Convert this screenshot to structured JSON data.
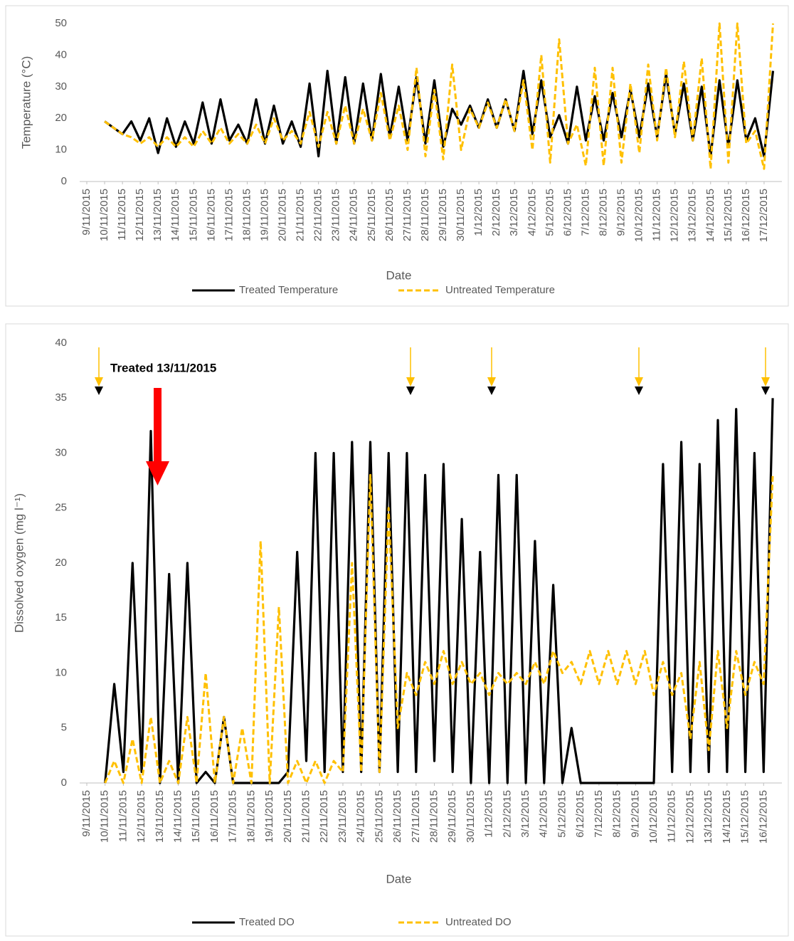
{
  "chart_data": [
    {
      "type": "line",
      "x_label": "Date",
      "y_label": "Temperature (°C)",
      "xlim": [
        0,
        39
      ],
      "ylim": [
        0,
        50
      ],
      "yticks": [
        0,
        10,
        20,
        30,
        40,
        50
      ],
      "grid": false,
      "legend": "bottom",
      "xticks": [
        {
          "value": 0,
          "label": "9/11/2015"
        },
        {
          "value": 1,
          "label": "10/11/2015"
        },
        {
          "value": 2,
          "label": "11/11/2015"
        },
        {
          "value": 3,
          "label": "12/11/2015"
        },
        {
          "value": 4,
          "label": "13/11/2015"
        },
        {
          "value": 5,
          "label": "14/11/2015"
        },
        {
          "value": 6,
          "label": "15/11/2015"
        },
        {
          "value": 7,
          "label": "16/11/2015"
        },
        {
          "value": 8,
          "label": "17/11/2015"
        },
        {
          "value": 9,
          "label": "18/11/2015"
        },
        {
          "value": 10,
          "label": "19/11/2015"
        },
        {
          "value": 11,
          "label": "20/11/2015"
        },
        {
          "value": 12,
          "label": "21/11/2015"
        },
        {
          "value": 13,
          "label": "22/11/2015"
        },
        {
          "value": 14,
          "label": "23/11/2015"
        },
        {
          "value": 15,
          "label": "24/11/2015"
        },
        {
          "value": 16,
          "label": "25/11/2015"
        },
        {
          "value": 17,
          "label": "26/11/2015"
        },
        {
          "value": 18,
          "label": "27/11/2015"
        },
        {
          "value": 19,
          "label": "28/11/2015"
        },
        {
          "value": 20,
          "label": "29/11/2015"
        },
        {
          "value": 21,
          "label": "30/11/2015"
        },
        {
          "value": 22,
          "label": "1/12/2015"
        },
        {
          "value": 23,
          "label": "2/12/2015"
        },
        {
          "value": 24,
          "label": "3/12/2015"
        },
        {
          "value": 25,
          "label": "4/12/2015"
        },
        {
          "value": 26,
          "label": "5/12/2015"
        },
        {
          "value": 27,
          "label": "6/12/2015"
        },
        {
          "value": 28,
          "label": "7/12/2015"
        },
        {
          "value": 29,
          "label": "8/12/2015"
        },
        {
          "value": 30,
          "label": "9/12/2015"
        },
        {
          "value": 31,
          "label": "10/12/2015"
        },
        {
          "value": 32,
          "label": "11/12/2015"
        },
        {
          "value": 33,
          "label": "12/12/2015"
        },
        {
          "value": 34,
          "label": "13/12/2015"
        },
        {
          "value": 35,
          "label": "14/12/2015"
        },
        {
          "value": 36,
          "label": "15/12/2015"
        },
        {
          "value": 37,
          "label": "16/12/2015"
        },
        {
          "value": 38,
          "label": "17/12/2015"
        }
      ],
      "x": [
        1,
        1.5,
        2,
        2.5,
        3,
        3.5,
        4,
        4.5,
        5,
        5.5,
        6,
        6.5,
        7,
        7.5,
        8,
        8.5,
        9,
        9.5,
        10,
        10.5,
        11,
        11.5,
        12,
        12.5,
        13,
        13.5,
        14,
        14.5,
        15,
        15.5,
        16,
        16.5,
        17,
        17.5,
        18,
        18.5,
        19,
        19.5,
        20,
        20.5,
        21,
        21.5,
        22,
        22.5,
        23,
        23.5,
        24,
        24.5,
        25,
        25.5,
        26,
        26.5,
        27,
        27.5,
        28,
        28.5,
        29,
        29.5,
        30,
        30.5,
        31,
        31.5,
        32,
        32.5,
        33,
        33.5,
        34,
        34.5,
        35,
        35.5,
        36,
        36.5,
        37,
        37.5,
        38,
        38.5
      ],
      "series": [
        {
          "name": "Treated Temperature",
          "color": "#000000",
          "dashed": false,
          "values": [
            19,
            17,
            15,
            19,
            13,
            20,
            9,
            20,
            11,
            19,
            12,
            25,
            12,
            26,
            13,
            18,
            12,
            26,
            12,
            24,
            12,
            19,
            11,
            31,
            8,
            35,
            12,
            33,
            12,
            31,
            13,
            34,
            14,
            30,
            13,
            33,
            12,
            32,
            11,
            23,
            18,
            24,
            17,
            26,
            17,
            26,
            16,
            35,
            15,
            32,
            14,
            21,
            12,
            30,
            13,
            27,
            13,
            28,
            14,
            29,
            14,
            31,
            14,
            34,
            15,
            31,
            13,
            30,
            8,
            32,
            11,
            32,
            13,
            20,
            8,
            35
          ]
        },
        {
          "name": "Untreated Temperature",
          "color": "#FFC000",
          "dashed": true,
          "values": [
            19,
            17,
            15,
            14,
            12,
            14,
            11,
            14,
            11,
            14,
            11,
            16,
            12,
            17,
            12,
            15,
            12,
            18,
            12,
            20,
            13,
            16,
            12,
            22,
            11,
            22,
            12,
            24,
            12,
            23,
            13,
            28,
            13,
            24,
            10,
            36,
            8,
            29,
            7,
            37,
            10,
            23,
            17,
            25,
            17,
            26,
            16,
            32,
            10,
            40,
            6,
            45,
            12,
            18,
            5,
            36,
            5,
            36,
            6,
            31,
            9,
            37,
            13,
            36,
            14,
            38,
            13,
            39,
            4,
            50,
            6,
            50,
            12,
            16,
            4,
            50
          ]
        }
      ]
    },
    {
      "type": "line",
      "x_label": "Date",
      "y_label": "Dissolved oxygen (mg l⁻¹)",
      "annotation": "Treated 13/11/2015",
      "xlim": [
        0,
        38
      ],
      "ylim": [
        0,
        40
      ],
      "yticks": [
        0,
        5,
        10,
        15,
        20,
        25,
        30,
        35,
        40
      ],
      "grid": false,
      "legend": "bottom",
      "xticks": [
        {
          "value": 0,
          "label": "9/11/2015"
        },
        {
          "value": 1,
          "label": "10/11/2015"
        },
        {
          "value": 2,
          "label": "11/11/2015"
        },
        {
          "value": 3,
          "label": "12/11/2015"
        },
        {
          "value": 4,
          "label": "13/11/2015"
        },
        {
          "value": 5,
          "label": "14/11/2015"
        },
        {
          "value": 6,
          "label": "15/11/2015"
        },
        {
          "value": 7,
          "label": "16/11/2015"
        },
        {
          "value": 8,
          "label": "17/11/2015"
        },
        {
          "value": 9,
          "label": "18/11/2015"
        },
        {
          "value": 10,
          "label": "19/11/2015"
        },
        {
          "value": 11,
          "label": "20/11/2015"
        },
        {
          "value": 12,
          "label": "21/11/2015"
        },
        {
          "value": 13,
          "label": "22/11/2015"
        },
        {
          "value": 14,
          "label": "23/11/2015"
        },
        {
          "value": 15,
          "label": "24/11/2015"
        },
        {
          "value": 16,
          "label": "25/11/2015"
        },
        {
          "value": 17,
          "label": "26/11/2015"
        },
        {
          "value": 18,
          "label": "27/11/2015"
        },
        {
          "value": 19,
          "label": "28/11/2015"
        },
        {
          "value": 20,
          "label": "29/11/2015"
        },
        {
          "value": 21,
          "label": "30/11/2015"
        },
        {
          "value": 22,
          "label": "1/12/2015"
        },
        {
          "value": 23,
          "label": "2/12/2015"
        },
        {
          "value": 24,
          "label": "3/12/2015"
        },
        {
          "value": 25,
          "label": "4/12/2015"
        },
        {
          "value": 26,
          "label": "5/12/2015"
        },
        {
          "value": 27,
          "label": "6/12/2015"
        },
        {
          "value": 28,
          "label": "7/12/2015"
        },
        {
          "value": 29,
          "label": "8/12/2015"
        },
        {
          "value": 30,
          "label": "9/12/2015"
        },
        {
          "value": 31,
          "label": "10/12/2015"
        },
        {
          "value": 32,
          "label": "11/12/2015"
        },
        {
          "value": 33,
          "label": "12/12/2015"
        },
        {
          "value": 34,
          "label": "13/12/2015"
        },
        {
          "value": 35,
          "label": "14/12/2015"
        },
        {
          "value": 36,
          "label": "15/12/2015"
        },
        {
          "value": 37,
          "label": "16/12/2015"
        }
      ],
      "x": [
        1,
        1.5,
        2,
        2.5,
        3,
        3.5,
        4,
        4.5,
        5,
        5.5,
        6,
        6.5,
        7,
        7.5,
        8,
        8.5,
        9,
        9.5,
        10,
        10.5,
        11,
        11.5,
        12,
        12.5,
        13,
        13.5,
        14,
        14.5,
        15,
        15.5,
        16,
        16.5,
        17,
        17.5,
        18,
        18.5,
        19,
        19.5,
        20,
        20.5,
        21,
        21.5,
        22,
        22.5,
        23,
        23.5,
        24,
        24.5,
        25,
        25.5,
        26,
        26.5,
        27,
        27.5,
        28,
        28.5,
        29,
        29.5,
        30,
        30.5,
        31,
        31.5,
        32,
        32.5,
        33,
        33.5,
        34,
        34.5,
        35,
        35.5,
        36,
        36.5,
        37,
        37.5
      ],
      "series": [
        {
          "name": "Treated DO",
          "color": "#000000",
          "dashed": false,
          "values": [
            0,
            9,
            1,
            20,
            1,
            32,
            0,
            19,
            0,
            20,
            0,
            1,
            0,
            6,
            0,
            0,
            0,
            0,
            0,
            0,
            1,
            21,
            2,
            30,
            1,
            30,
            1,
            31,
            1,
            31,
            1,
            30,
            1,
            30,
            1,
            28,
            2,
            29,
            1,
            24,
            0,
            21,
            0,
            28,
            0,
            28,
            0,
            22,
            0,
            18,
            0,
            5,
            0,
            0,
            0,
            0,
            0,
            0,
            0,
            0,
            0,
            29,
            1,
            31,
            1,
            29,
            1,
            33,
            1,
            34,
            1,
            30,
            1,
            35
          ]
        },
        {
          "name": "Untreated DO",
          "color": "#FFC000",
          "dashed": true,
          "values": [
            0,
            2,
            0,
            4,
            0,
            6,
            0,
            2,
            0,
            6,
            0,
            10,
            0,
            6,
            0,
            5,
            0,
            22,
            0,
            16,
            0,
            2,
            0,
            2,
            0,
            2,
            1,
            20,
            1,
            28,
            1,
            25,
            5,
            10,
            8,
            11,
            9,
            12,
            9,
            11,
            9,
            10,
            8,
            10,
            9,
            10,
            9,
            11,
            9,
            12,
            10,
            11,
            9,
            12,
            9,
            12,
            9,
            12,
            9,
            12,
            8,
            11,
            8,
            10,
            4,
            11,
            3,
            12,
            5,
            12,
            8,
            11,
            9,
            28
          ]
        }
      ]
    }
  ]
}
